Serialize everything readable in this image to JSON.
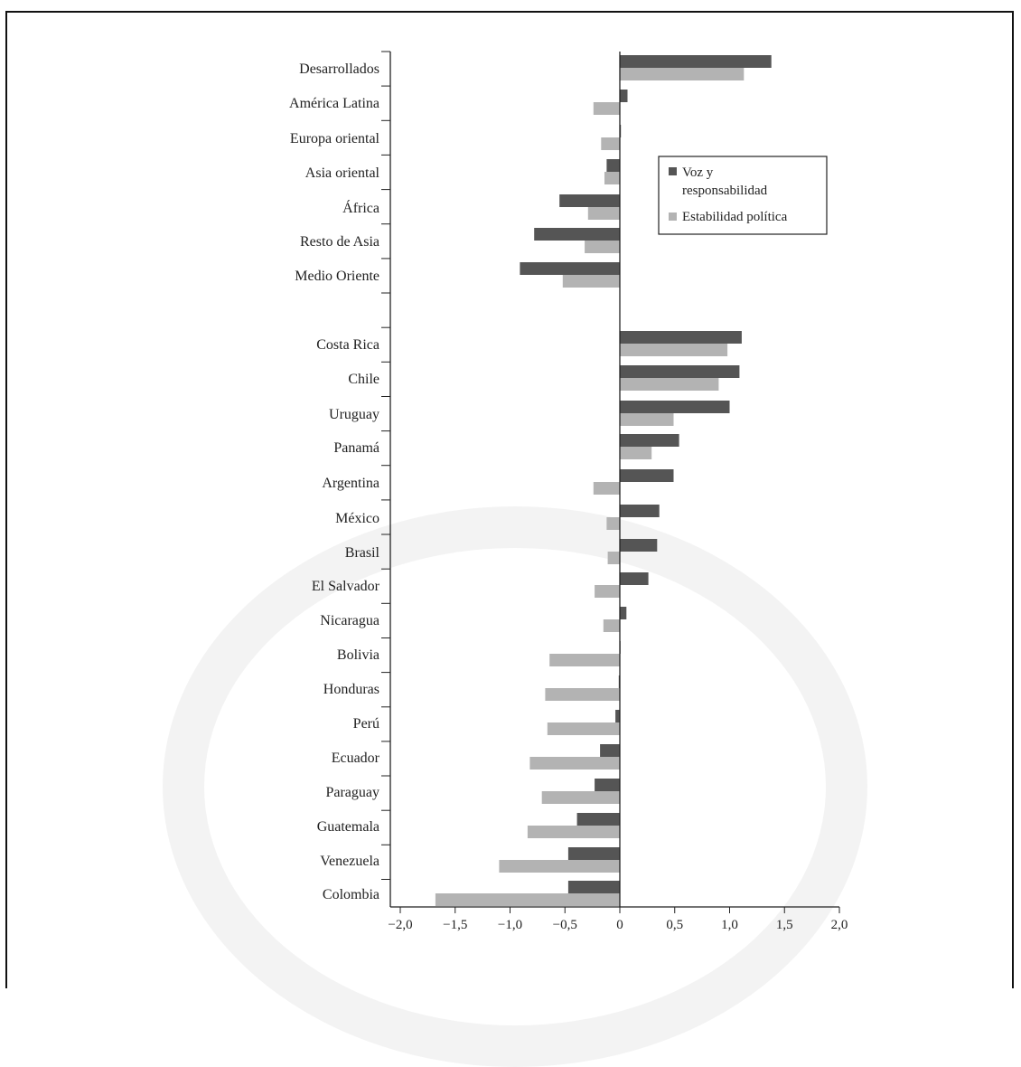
{
  "chart_data": {
    "type": "bar",
    "orientation": "horizontal",
    "title": "",
    "xlabel": "",
    "ylabel": "",
    "xlim": [
      -2.0,
      2.0
    ],
    "xticks": [
      "−2,0",
      "−1,5",
      "−1,0",
      "−0,5",
      "0",
      "0,5",
      "1,0",
      "1,5",
      "2,0"
    ],
    "xtick_values": [
      -2.0,
      -1.5,
      -1.0,
      -0.5,
      0,
      0.5,
      1.0,
      1.5,
      2.0
    ],
    "grid": false,
    "legend_position": "upper-right",
    "categories": [
      "Desarrollados",
      "América Latina",
      "Europa oriental",
      "Asia oriental",
      "África",
      "Resto de Asia",
      "Medio Oriente",
      "Costa Rica",
      "Chile",
      "Uruguay",
      "Panamá",
      "Argentina",
      "México",
      "Brasil",
      "El Salvador",
      "Nicaragua",
      "Bolivia",
      "Honduras",
      "Perú",
      "Ecuador",
      "Paraguay",
      "Guatemala",
      "Venezuela",
      "Colombia"
    ],
    "series": [
      {
        "name": "Voz y responsabilidad",
        "legend_lines": [
          "Voz y",
          "responsabilidad"
        ],
        "color": "#555555",
        "values": [
          1.38,
          0.07,
          0.01,
          -0.12,
          -0.55,
          -0.78,
          -0.91,
          1.11,
          1.09,
          1.0,
          0.54,
          0.49,
          0.36,
          0.34,
          0.26,
          0.06,
          0.0,
          -0.01,
          -0.04,
          -0.18,
          -0.23,
          -0.39,
          -0.47,
          -0.47
        ]
      },
      {
        "name": "Estabilidad política",
        "legend_lines": [
          "Estabilidad política"
        ],
        "color": "#b3b3b3",
        "values": [
          1.13,
          -0.24,
          -0.17,
          -0.14,
          -0.29,
          -0.32,
          -0.52,
          0.98,
          0.9,
          0.49,
          0.29,
          -0.24,
          -0.12,
          -0.11,
          -0.23,
          -0.15,
          -0.64,
          -0.68,
          -0.66,
          -0.82,
          -0.71,
          -0.84,
          -1.1,
          -1.68
        ]
      }
    ]
  }
}
